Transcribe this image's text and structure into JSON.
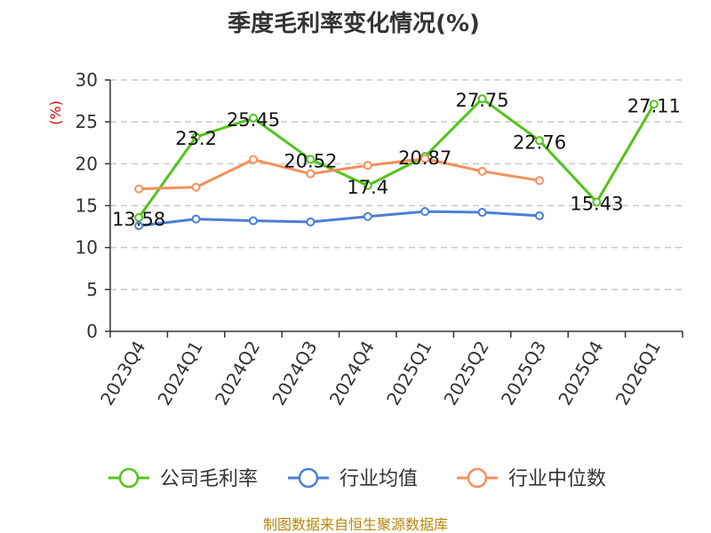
{
  "chart_data": {
    "type": "line",
    "title": "季度毛利率变化情况(%)",
    "ylabel": "(%)",
    "categories": [
      "2023Q4",
      "2024Q1",
      "2024Q2",
      "2024Q3",
      "2024Q4",
      "2025Q1",
      "2025Q2",
      "2025Q3",
      "2025Q4",
      "2026Q1"
    ],
    "ylim": [
      0,
      30
    ],
    "yticks": [
      0,
      5,
      10,
      15,
      20,
      25,
      30
    ],
    "grid": true,
    "legend_position": "bottom",
    "series": [
      {
        "name": "公司毛利率",
        "color": "#52c41a",
        "labeled": true,
        "values": [
          13.58,
          23.2,
          25.45,
          20.52,
          17.4,
          20.87,
          27.75,
          22.76,
          15.43,
          27.11
        ],
        "labels": [
          "13.58",
          "23.2",
          "25.45",
          "20.52",
          "17.4",
          "20.87",
          "27.75",
          "22.76",
          "15.43",
          "27.11"
        ]
      },
      {
        "name": "行业均值",
        "color": "#4a7fd6",
        "labeled": false,
        "values": [
          12.6,
          13.4,
          13.2,
          13.05,
          13.7,
          14.3,
          14.2,
          13.8,
          null,
          null
        ]
      },
      {
        "name": "行业中位数",
        "color": "#f5905a",
        "labeled": false,
        "values": [
          17.0,
          17.2,
          20.5,
          18.8,
          19.8,
          20.6,
          19.1,
          18.0,
          null,
          null
        ]
      }
    ]
  },
  "footer": {
    "source": "制图数据来自恒生聚源数据库"
  }
}
